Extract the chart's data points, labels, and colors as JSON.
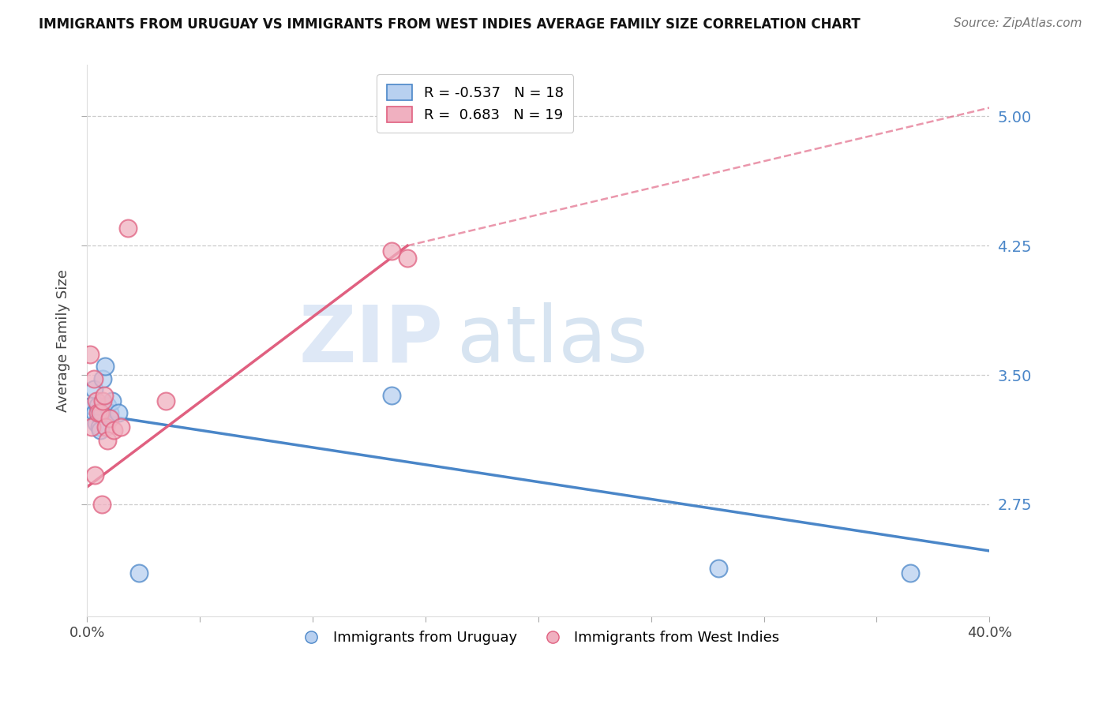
{
  "title": "IMMIGRANTS FROM URUGUAY VS IMMIGRANTS FROM WEST INDIES AVERAGE FAMILY SIZE CORRELATION CHART",
  "source": "Source: ZipAtlas.com",
  "ylabel": "Average Family Size",
  "yticks": [
    2.75,
    3.5,
    4.25,
    5.0
  ],
  "xlim": [
    0.0,
    40.0
  ],
  "ylim": [
    2.1,
    5.3
  ],
  "legend_top": [
    {
      "label": "R = -0.537   N = 18"
    },
    {
      "label": "R =  0.683   N = 19"
    }
  ],
  "legend_bottom": [
    {
      "label": "Immigrants from Uruguay"
    },
    {
      "label": "Immigrants from West Indies"
    }
  ],
  "uruguay_x": [
    0.2,
    0.3,
    0.35,
    0.4,
    0.5,
    0.55,
    0.6,
    0.65,
    0.7,
    0.8,
    0.9,
    1.0,
    1.1,
    1.4,
    2.3,
    13.5,
    28.0,
    36.5
  ],
  "uruguay_y": [
    3.32,
    3.42,
    3.28,
    3.22,
    3.32,
    3.2,
    3.18,
    3.28,
    3.48,
    3.55,
    3.32,
    3.28,
    3.35,
    3.28,
    2.35,
    3.38,
    2.38,
    2.35
  ],
  "westindies_x": [
    0.15,
    0.2,
    0.3,
    0.4,
    0.5,
    0.6,
    0.7,
    0.75,
    0.85,
    0.9,
    1.0,
    1.2,
    1.5,
    1.8,
    3.5,
    13.5,
    14.2,
    0.35,
    0.65
  ],
  "westindies_y": [
    3.62,
    3.2,
    3.48,
    3.35,
    3.28,
    3.28,
    3.35,
    3.38,
    3.2,
    3.12,
    3.25,
    3.18,
    3.2,
    4.35,
    3.35,
    4.22,
    4.18,
    2.92,
    2.75
  ],
  "blue_color": "#4a86c8",
  "pink_color": "#e06080",
  "bg_color": "#ffffff",
  "watermark_zip": "ZIP",
  "watermark_atlas": "atlas",
  "watermark_color": "#cddff5",
  "watermark_atlas_color": "#b8cce8",
  "blue_line_start_y": 3.28,
  "blue_line_end_y": 2.48,
  "pink_line_start_y": 2.85,
  "pink_line_end_solid_x": 14.2,
  "pink_line_end_solid_y": 4.25,
  "pink_line_end_dash_x": 40.0,
  "pink_line_end_dash_y": 5.05
}
